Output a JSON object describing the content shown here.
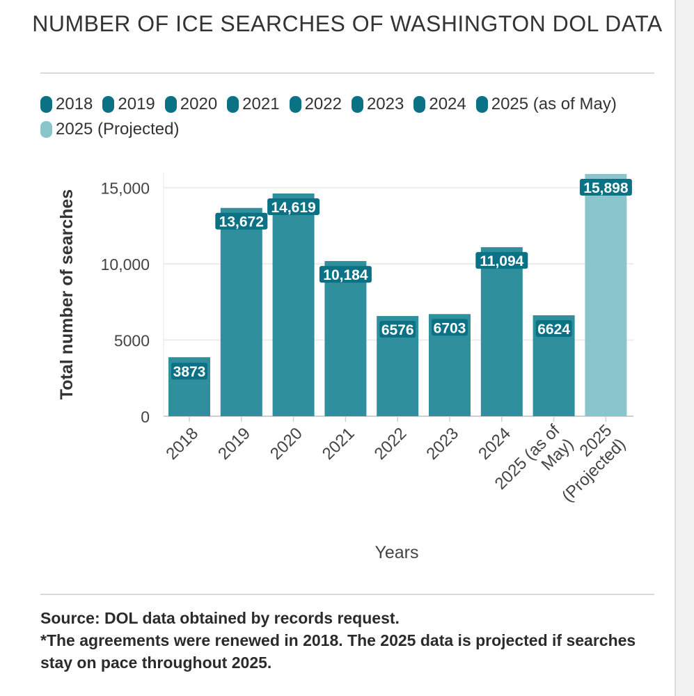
{
  "title": "NUMBER OF ICE SEARCHES OF WASHINGTON DOL DATA",
  "colors": {
    "bar": "#2f8f9d",
    "projected": "#8ac5cc",
    "label_bg": "#0b7285",
    "legend": "#0b7285"
  },
  "legend": [
    {
      "label": "2018",
      "projected": false
    },
    {
      "label": "2019",
      "projected": false
    },
    {
      "label": "2020",
      "projected": false
    },
    {
      "label": "2021",
      "projected": false
    },
    {
      "label": "2022",
      "projected": false
    },
    {
      "label": "2023",
      "projected": false
    },
    {
      "label": "2024",
      "projected": false
    },
    {
      "label": "2025 (as of May)",
      "projected": false
    },
    {
      "label": "2025 (Projected)",
      "projected": true
    }
  ],
  "chart_data": {
    "type": "bar",
    "categories": [
      "2018",
      "2019",
      "2020",
      "2021",
      "2022",
      "2023",
      "2024",
      "2025 (as of May)",
      "2025 (Projected)"
    ],
    "category_lines": [
      [
        "2018"
      ],
      [
        "2019"
      ],
      [
        "2020"
      ],
      [
        "2021"
      ],
      [
        "2022"
      ],
      [
        "2023"
      ],
      [
        "2024"
      ],
      [
        "2025 (as of",
        "May)"
      ],
      [
        "2025",
        "(Projected)"
      ]
    ],
    "values": [
      3873,
      13672,
      14619,
      10184,
      6576,
      6703,
      11094,
      6624,
      15898
    ],
    "value_labels": [
      "3873",
      "13,672",
      "14,619",
      "10,184",
      "6576",
      "6703",
      "11,094",
      "6624",
      "15,898"
    ],
    "projected": [
      false,
      false,
      false,
      false,
      false,
      false,
      false,
      false,
      true
    ],
    "xlabel": "Years",
    "ylabel": "Total number of searches",
    "ylim": [
      0,
      16000
    ],
    "yticks": [
      0,
      5000,
      10000,
      15000
    ],
    "ytick_labels": [
      "0",
      "5000",
      "10,000",
      "15,000"
    ],
    "grid": true,
    "legend_position": "top"
  },
  "footer": {
    "source": "Source: DOL data obtained by records request.",
    "note": "*The agreements were renewed in 2018. The 2025 data is projected if searches stay on pace throughout 2025."
  }
}
